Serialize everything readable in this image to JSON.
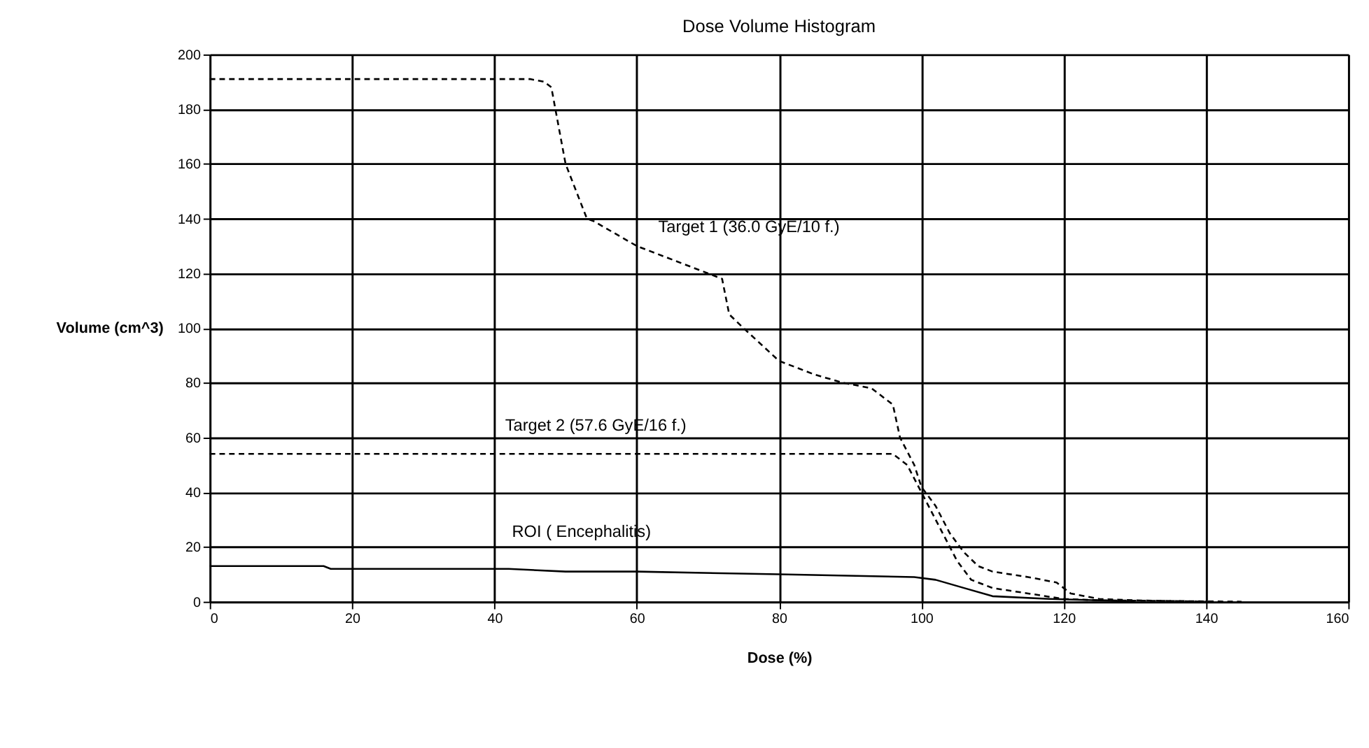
{
  "chart_data": {
    "type": "line",
    "title": "Dose Volume Histogram",
    "xlabel": "Dose (%)",
    "ylabel": "Volume (cm^3)",
    "xlim": [
      0,
      160
    ],
    "xticks": [
      0,
      20,
      40,
      60,
      80,
      100,
      120,
      140,
      160
    ],
    "ylim": [
      0,
      200
    ],
    "yticks": [
      0,
      20,
      40,
      60,
      80,
      100,
      120,
      140,
      160,
      180,
      200
    ],
    "grid": true,
    "legend": false,
    "marker": "none",
    "series": [
      {
        "name": "Target 1 (36.0 GyE/10 f.)",
        "color": "#000000",
        "line_style": "dashed",
        "x": [
          0,
          45,
          47,
          48,
          50,
          53,
          54,
          60,
          65,
          70,
          72,
          73,
          75,
          80,
          85,
          89,
          93,
          96,
          97,
          99,
          100,
          102,
          104,
          106,
          108,
          110,
          115,
          119,
          121,
          125,
          130,
          140
        ],
        "values": [
          191,
          191,
          190,
          188,
          160,
          140,
          139,
          130,
          125,
          120,
          118,
          105,
          100,
          88,
          83,
          80,
          78,
          72,
          60,
          50,
          42,
          35,
          25,
          18,
          13,
          11,
          9,
          7,
          3,
          1,
          0.5,
          0
        ]
      },
      {
        "name": "Target 2 (57.6 GyE/16 f.)",
        "color": "#000000",
        "line_style": "dashed",
        "x": [
          0,
          96,
          98,
          100,
          101,
          103,
          105,
          107,
          110,
          115,
          120,
          125,
          145
        ],
        "values": [
          54,
          54,
          50,
          40,
          35,
          25,
          15,
          8,
          5,
          3,
          1,
          0.5,
          0
        ]
      },
      {
        "name": "ROI ( Encephalitis)",
        "color": "#000000",
        "line_style": "solid",
        "x": [
          0,
          16,
          17,
          42,
          50,
          60,
          80,
          99,
          102,
          106,
          110,
          118,
          125,
          130
        ],
        "values": [
          13,
          13,
          12,
          12,
          11,
          11,
          10,
          9,
          8,
          5,
          2,
          1,
          0.5,
          0
        ]
      }
    ]
  }
}
